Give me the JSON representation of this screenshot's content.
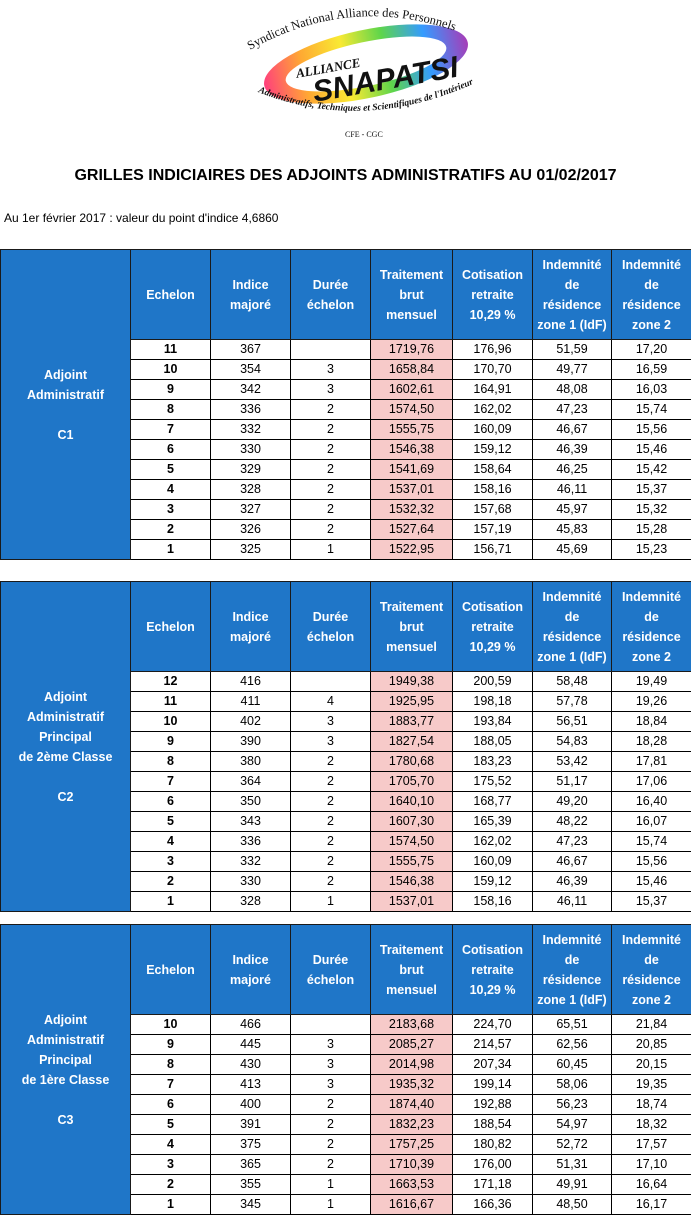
{
  "logo": {
    "top_text": "Syndicat National Alliance des Personnels",
    "alliance": "ALLIANCE",
    "name": "SNAPATSI",
    "bottom_text": "Administratifs, Techniques et Scientifiques de l'Intérieur",
    "affiliation": "CFE - CGC"
  },
  "title": "GRILLES INDICIAIRES DES ADJOINTS ADMINISTRATIFS AU 01/02/2017",
  "subtitle": "Au 1er février 2017 : valeur du point d'indice 4,6860",
  "headers": {
    "echelon": [
      "Echelon"
    ],
    "indice": [
      "Indice",
      "majoré"
    ],
    "duree": [
      "Durée",
      "échelon"
    ],
    "traitement": [
      "Traitement",
      "brut",
      "mensuel"
    ],
    "cotisation": [
      "Cotisation",
      "retraite",
      "10,29 %"
    ],
    "zone1": [
      "Indemnité",
      "de",
      "résidence",
      "zone 1 (IdF)"
    ],
    "zone2": [
      "Indemnité",
      "de",
      "résidence",
      "zone 2"
    ]
  },
  "grades": [
    {
      "label_lines": [
        "Adjoint",
        "Administratif"
      ],
      "code": "C1",
      "rows": [
        [
          "11",
          "367",
          "",
          "1719,76",
          "176,96",
          "51,59",
          "17,20"
        ],
        [
          "10",
          "354",
          "3",
          "1658,84",
          "170,70",
          "49,77",
          "16,59"
        ],
        [
          "9",
          "342",
          "3",
          "1602,61",
          "164,91",
          "48,08",
          "16,03"
        ],
        [
          "8",
          "336",
          "2",
          "1574,50",
          "162,02",
          "47,23",
          "15,74"
        ],
        [
          "7",
          "332",
          "2",
          "1555,75",
          "160,09",
          "46,67",
          "15,56"
        ],
        [
          "6",
          "330",
          "2",
          "1546,38",
          "159,12",
          "46,39",
          "15,46"
        ],
        [
          "5",
          "329",
          "2",
          "1541,69",
          "158,64",
          "46,25",
          "15,42"
        ],
        [
          "4",
          "328",
          "2",
          "1537,01",
          "158,16",
          "46,11",
          "15,37"
        ],
        [
          "3",
          "327",
          "2",
          "1532,32",
          "157,68",
          "45,97",
          "15,32"
        ],
        [
          "2",
          "326",
          "2",
          "1527,64",
          "157,19",
          "45,83",
          "15,28"
        ],
        [
          "1",
          "325",
          "1",
          "1522,95",
          "156,71",
          "45,69",
          "15,23"
        ]
      ]
    },
    {
      "label_lines": [
        "Adjoint",
        "Administratif",
        "Principal",
        "de 2ème Classe"
      ],
      "code": "C2",
      "rows": [
        [
          "12",
          "416",
          "",
          "1949,38",
          "200,59",
          "58,48",
          "19,49"
        ],
        [
          "11",
          "411",
          "4",
          "1925,95",
          "198,18",
          "57,78",
          "19,26"
        ],
        [
          "10",
          "402",
          "3",
          "1883,77",
          "193,84",
          "56,51",
          "18,84"
        ],
        [
          "9",
          "390",
          "3",
          "1827,54",
          "188,05",
          "54,83",
          "18,28"
        ],
        [
          "8",
          "380",
          "2",
          "1780,68",
          "183,23",
          "53,42",
          "17,81"
        ],
        [
          "7",
          "364",
          "2",
          "1705,70",
          "175,52",
          "51,17",
          "17,06"
        ],
        [
          "6",
          "350",
          "2",
          "1640,10",
          "168,77",
          "49,20",
          "16,40"
        ],
        [
          "5",
          "343",
          "2",
          "1607,30",
          "165,39",
          "48,22",
          "16,07"
        ],
        [
          "4",
          "336",
          "2",
          "1574,50",
          "162,02",
          "47,23",
          "15,74"
        ],
        [
          "3",
          "332",
          "2",
          "1555,75",
          "160,09",
          "46,67",
          "15,56"
        ],
        [
          "2",
          "330",
          "2",
          "1546,38",
          "159,12",
          "46,39",
          "15,46"
        ],
        [
          "1",
          "328",
          "1",
          "1537,01",
          "158,16",
          "46,11",
          "15,37"
        ]
      ]
    },
    {
      "label_lines": [
        "Adjoint",
        "Administratif",
        "Principal",
        "de 1ère Classe"
      ],
      "code": "C3",
      "rows": [
        [
          "10",
          "466",
          "",
          "2183,68",
          "224,70",
          "65,51",
          "21,84"
        ],
        [
          "9",
          "445",
          "3",
          "2085,27",
          "214,57",
          "62,56",
          "20,85"
        ],
        [
          "8",
          "430",
          "3",
          "2014,98",
          "207,34",
          "60,45",
          "20,15"
        ],
        [
          "7",
          "413",
          "3",
          "1935,32",
          "199,14",
          "58,06",
          "19,35"
        ],
        [
          "6",
          "400",
          "2",
          "1874,40",
          "192,88",
          "56,23",
          "18,74"
        ],
        [
          "5",
          "391",
          "2",
          "1832,23",
          "188,54",
          "54,97",
          "18,32"
        ],
        [
          "4",
          "375",
          "2",
          "1757,25",
          "180,82",
          "52,72",
          "17,57"
        ],
        [
          "3",
          "365",
          "2",
          "1710,39",
          "176,00",
          "51,31",
          "17,10"
        ],
        [
          "2",
          "355",
          "1",
          "1663,53",
          "171,18",
          "49,91",
          "16,64"
        ],
        [
          "1",
          "345",
          "1",
          "1616,67",
          "166,36",
          "48,50",
          "16,17"
        ]
      ]
    }
  ],
  "colors": {
    "header_blue": "#1f76c8",
    "traitement_pink": "#f7cac9"
  }
}
